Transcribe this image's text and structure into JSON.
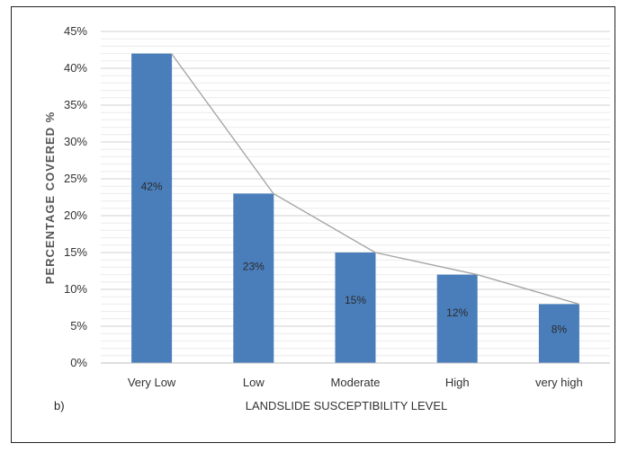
{
  "chart_data": {
    "type": "bar",
    "categories": [
      "Very Low",
      "Low",
      "Moderate",
      "High",
      "very high"
    ],
    "values": [
      42,
      23,
      15,
      12,
      8
    ],
    "data_labels": [
      "42%",
      "23%",
      "15%",
      "12%",
      "8%"
    ],
    "ylabel": "PERCENTAGE  COVERED %",
    "xlabel": "LANDSLIDE SUSCEPTIBILITY  LEVEL",
    "ylim": [
      0,
      45
    ],
    "yticks": [
      "0%",
      "5%",
      "10%",
      "15%",
      "20%",
      "25%",
      "30%",
      "35%",
      "40%",
      "45%"
    ],
    "panel_label": "b)",
    "bar_color": "#4a7ebb",
    "line_color": "#a6a6a6",
    "grid": true,
    "connecting_line": true,
    "legend": "none"
  }
}
